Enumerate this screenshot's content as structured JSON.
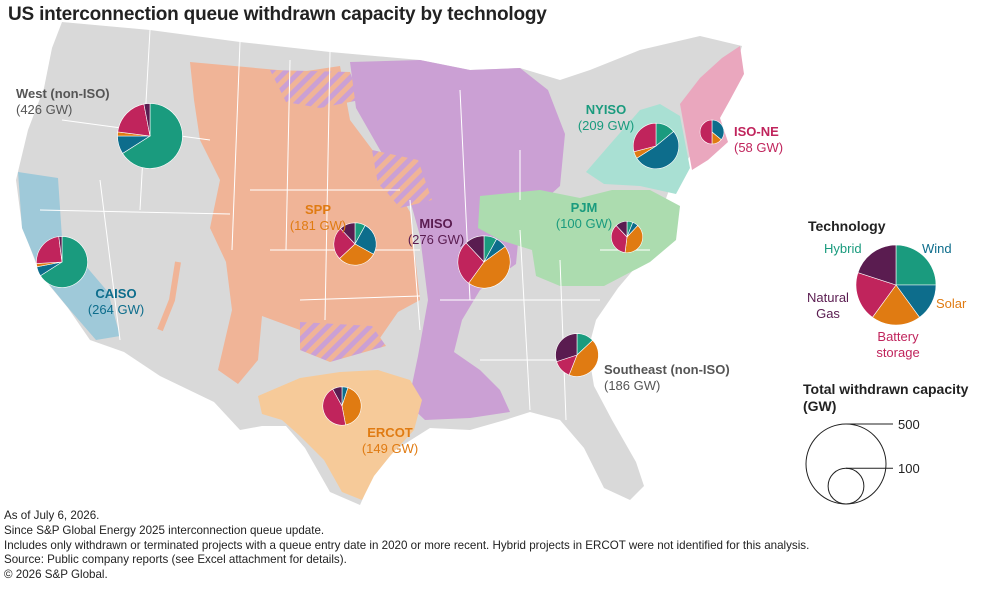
{
  "title": "US interconnection queue withdrawn capacity by technology",
  "colors": {
    "Hybrid": "#1a9b7e",
    "Wind": "#0d6d8c",
    "Solar": "#e07b12",
    "Battery storage": "#c0245c",
    "Natural Gas": "#5a1c50",
    "land": "#d9d9d9",
    "border": "#ffffff",
    "West (non-ISO)": "#d9d9d9",
    "CAISO": "#9fc9d9",
    "SPP": "#f0b497",
    "MISO": "#cba0d4",
    "PJM": "#acdcaf",
    "NYISO": "#a9e0d3",
    "ISO-NE": "#eaa7be",
    "ERCOT": "#f6ca99",
    "Southeast (non-ISO)": "#d9d9d9"
  },
  "regions": [
    {
      "name": "West (non-ISO)",
      "capacity_label": "(426 GW)",
      "gw": 426,
      "name_color": "#555555",
      "shares": {
        "Hybrid": 0.66,
        "Wind": 0.09,
        "Solar": 0.02,
        "Battery storage": 0.2,
        "Natural Gas": 0.03
      }
    },
    {
      "name": "NYISO",
      "capacity_label": "(209 GW)",
      "gw": 209,
      "name_color": "#1a9b7e",
      "shares": {
        "Hybrid": 0.14,
        "Wind": 0.52,
        "Solar": 0.05,
        "Battery storage": 0.29,
        "Natural Gas": 0.0
      }
    },
    {
      "name": "ISO-NE",
      "capacity_label": "(58 GW)",
      "gw": 58,
      "name_color": "#c0245c",
      "shares": {
        "Hybrid": 0.0,
        "Wind": 0.36,
        "Solar": 0.14,
        "Battery storage": 0.5,
        "Natural Gas": 0.0
      }
    },
    {
      "name": "SPP",
      "capacity_label": "(181 GW)",
      "gw": 181,
      "name_color": "#e07b12",
      "shares": {
        "Hybrid": 0.08,
        "Wind": 0.25,
        "Solar": 0.3,
        "Battery storage": 0.25,
        "Natural Gas": 0.12
      }
    },
    {
      "name": "MISO",
      "capacity_label": "(276 GW)",
      "gw": 276,
      "name_color": "#5a1c50",
      "shares": {
        "Hybrid": 0.08,
        "Wind": 0.07,
        "Solar": 0.45,
        "Battery storage": 0.28,
        "Natural Gas": 0.12
      }
    },
    {
      "name": "PJM",
      "capacity_label": "(100 GW)",
      "gw": 100,
      "name_color": "#1a9b7e",
      "shares": {
        "Hybrid": 0.06,
        "Wind": 0.06,
        "Solar": 0.4,
        "Battery storage": 0.36,
        "Natural Gas": 0.12
      }
    },
    {
      "name": "CAISO",
      "capacity_label": "(264 GW)",
      "gw": 264,
      "name_color": "#0d6d8c",
      "shares": {
        "Hybrid": 0.66,
        "Wind": 0.06,
        "Solar": 0.02,
        "Battery storage": 0.24,
        "Natural Gas": 0.02
      }
    },
    {
      "name": "ERCOT",
      "capacity_label": "(149 GW)",
      "gw": 149,
      "name_color": "#e07b12",
      "shares": {
        "Hybrid": 0.0,
        "Wind": 0.05,
        "Solar": 0.42,
        "Battery storage": 0.45,
        "Natural Gas": 0.08
      }
    },
    {
      "name": "Southeast (non-ISO)",
      "capacity_label": "(186 GW)",
      "gw": 186,
      "name_color": "#555555",
      "shares": {
        "Hybrid": 0.13,
        "Wind": 0.0,
        "Solar": 0.43,
        "Battery storage": 0.14,
        "Natural Gas": 0.3
      }
    }
  ],
  "legend": {
    "technology_title": "Technology",
    "items": [
      {
        "key": "Hybrid",
        "label": "Hybrid"
      },
      {
        "key": "Wind",
        "label": "Wind"
      },
      {
        "key": "Solar",
        "label": "Solar"
      },
      {
        "key": "Battery storage",
        "label_lines": [
          "Battery",
          "storage"
        ]
      },
      {
        "key": "Natural Gas",
        "label_lines": [
          "Natural",
          "Gas"
        ]
      }
    ],
    "size_title_lines": [
      "Total withdrawn capacity",
      "(GW)"
    ],
    "size_values": [
      500,
      100
    ],
    "size_labels": [
      "500",
      "100"
    ]
  },
  "notes": [
    "As of July 6, 2026.",
    "Since S&P Global Energy 2025 interconnection queue update.",
    "Includes only withdrawn or terminated projects with a queue entry date in 2020 or more recent. Hybrid projects in ERCOT were not identified for this analysis.",
    "Source: Public company reports (see Excel attachment for details).",
    "© 2026 S&P Global."
  ]
}
